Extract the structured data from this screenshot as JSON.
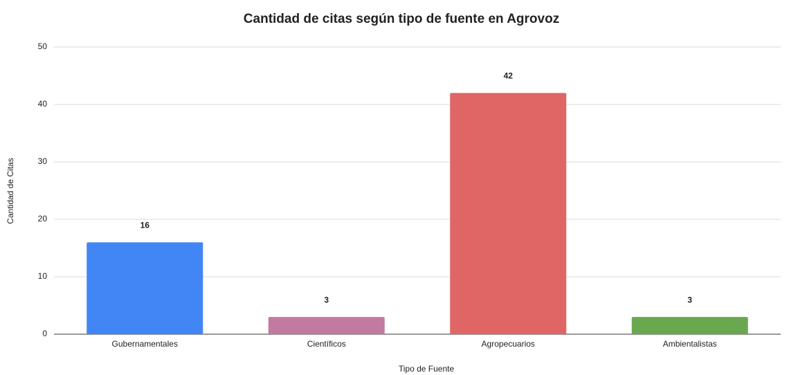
{
  "chart_data": {
    "type": "bar",
    "title": "Cantidad de citas según tipo de fuente en Agrovoz",
    "x_label": "Tipo de Fuente",
    "y_label": "Cantidad de Citas",
    "categories": [
      "Gubernamentales",
      "Científicos",
      "Agropecuarios",
      "Ambientalistas"
    ],
    "values": [
      16,
      3,
      42,
      3
    ],
    "colors": [
      "#4285f4",
      "#c27ba0",
      "#e06666",
      "#6aa84f"
    ],
    "ylim": [
      0,
      50
    ],
    "yticks": [
      0,
      10,
      20,
      30,
      40,
      50
    ],
    "grid": true
  }
}
